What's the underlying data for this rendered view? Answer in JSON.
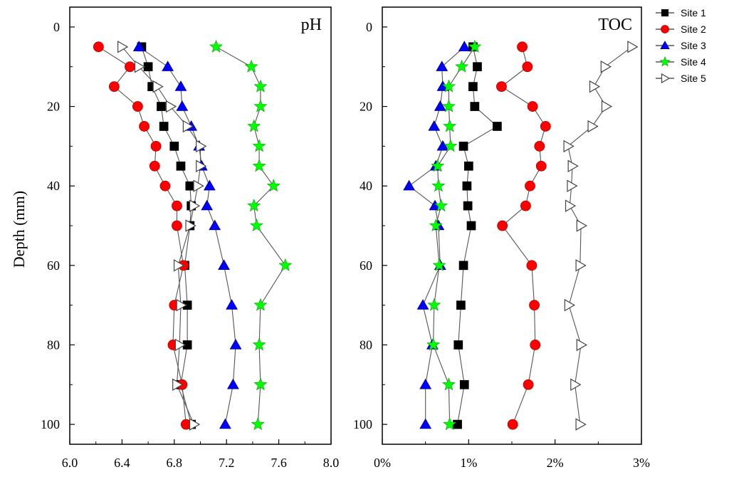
{
  "chart_data": [
    {
      "type": "line",
      "title": "pH",
      "xlabel": "",
      "ylabel": "Depth (mm)",
      "xlim": [
        6.0,
        8.0
      ],
      "ylim": [
        105,
        -5
      ],
      "xticks": [
        6.0,
        6.4,
        6.8,
        7.2,
        7.6,
        8.0
      ],
      "xtick_labels": [
        "6.0",
        "6.4",
        "6.8",
        "7.2",
        "7.6",
        "8.0"
      ],
      "yticks": [
        0,
        20,
        40,
        60,
        80,
        100
      ],
      "ytick_labels": [
        "0",
        "20",
        "40",
        "60",
        "80",
        "100"
      ],
      "depth": [
        5,
        10,
        15,
        20,
        25,
        30,
        35,
        40,
        45,
        50,
        60,
        70,
        80,
        90,
        100
      ],
      "series": [
        {
          "name": "Site 1",
          "values": [
            6.55,
            6.6,
            6.63,
            6.7,
            6.72,
            6.8,
            6.85,
            6.92,
            6.93,
            6.92,
            6.88,
            6.9,
            6.9,
            6.85,
            6.93
          ]
        },
        {
          "name": "Site 2",
          "values": [
            6.22,
            6.46,
            6.34,
            6.52,
            6.57,
            6.66,
            6.65,
            6.73,
            6.82,
            6.82,
            6.87,
            6.8,
            6.79,
            6.86,
            6.89
          ]
        },
        {
          "name": "Site 3",
          "values": [
            6.53,
            6.75,
            6.85,
            6.86,
            6.93,
            6.99,
            7.01,
            7.07,
            7.05,
            7.11,
            7.18,
            7.24,
            7.27,
            7.25,
            7.19
          ]
        },
        {
          "name": "Site 4",
          "values": [
            7.12,
            7.39,
            7.46,
            7.46,
            7.41,
            7.45,
            7.45,
            7.56,
            7.41,
            7.43,
            7.65,
            7.46,
            7.45,
            7.46,
            7.44
          ]
        },
        {
          "name": "Site 5",
          "values": [
            6.4,
            6.53,
            6.67,
            6.77,
            6.9,
            7.0,
            7.0,
            6.98,
            6.95,
            6.92,
            6.83,
            6.85,
            6.84,
            6.82,
            6.95
          ]
        }
      ]
    },
    {
      "type": "line",
      "title": "TOC",
      "xlabel": "",
      "ylabel": "",
      "xlim": [
        0,
        3
      ],
      "ylim": [
        105,
        -5
      ],
      "xticks": [
        0,
        1,
        2,
        3
      ],
      "xtick_labels": [
        "0%",
        "1%",
        "2%",
        "3%"
      ],
      "yticks": [
        0,
        20,
        40,
        60,
        80,
        100
      ],
      "ytick_labels": [
        "0",
        "20",
        "40",
        "60",
        "80",
        "100"
      ],
      "depth": [
        5,
        10,
        15,
        20,
        25,
        30,
        35,
        40,
        45,
        50,
        60,
        70,
        80,
        90,
        100
      ],
      "series": [
        {
          "name": "Site 1",
          "values": [
            1.05,
            1.1,
            1.05,
            1.07,
            1.33,
            0.94,
            1.0,
            0.98,
            0.99,
            1.03,
            0.94,
            0.91,
            0.88,
            0.95,
            0.87
          ]
        },
        {
          "name": "Site 2",
          "values": [
            1.62,
            1.68,
            1.38,
            1.74,
            1.89,
            1.82,
            1.84,
            1.71,
            1.66,
            1.39,
            1.73,
            1.76,
            1.77,
            1.69,
            1.51
          ]
        },
        {
          "name": "Site 3",
          "values": [
            0.95,
            0.69,
            0.7,
            0.67,
            0.6,
            0.7,
            0.62,
            0.31,
            0.61,
            0.65,
            0.67,
            0.47,
            0.58,
            0.5,
            0.5
          ]
        },
        {
          "name": "Site 4",
          "values": [
            1.07,
            0.92,
            0.77,
            0.77,
            0.78,
            0.79,
            0.64,
            0.65,
            0.68,
            0.62,
            0.66,
            0.6,
            0.59,
            0.77,
            0.78
          ]
        },
        {
          "name": "Site 5",
          "values": [
            2.89,
            2.58,
            2.45,
            2.59,
            2.43,
            2.15,
            2.2,
            2.19,
            2.17,
            2.3,
            2.29,
            2.16,
            2.3,
            2.23,
            2.29
          ]
        }
      ]
    }
  ],
  "legend": {
    "placement": "right",
    "items": [
      {
        "label": "Site 1",
        "marker": "square",
        "color": "#000000"
      },
      {
        "label": "Site 2",
        "marker": "circle",
        "color": "#ff0000"
      },
      {
        "label": "Site 3",
        "marker": "triangle-up",
        "color": "#0000ff"
      },
      {
        "label": "Site 4",
        "marker": "star",
        "color": "#00ff00"
      },
      {
        "label": "Site 5",
        "marker": "triangle-right-open",
        "color": "#ffffff"
      }
    ]
  },
  "colors": {
    "line": "#555555",
    "axis": "#000000"
  }
}
